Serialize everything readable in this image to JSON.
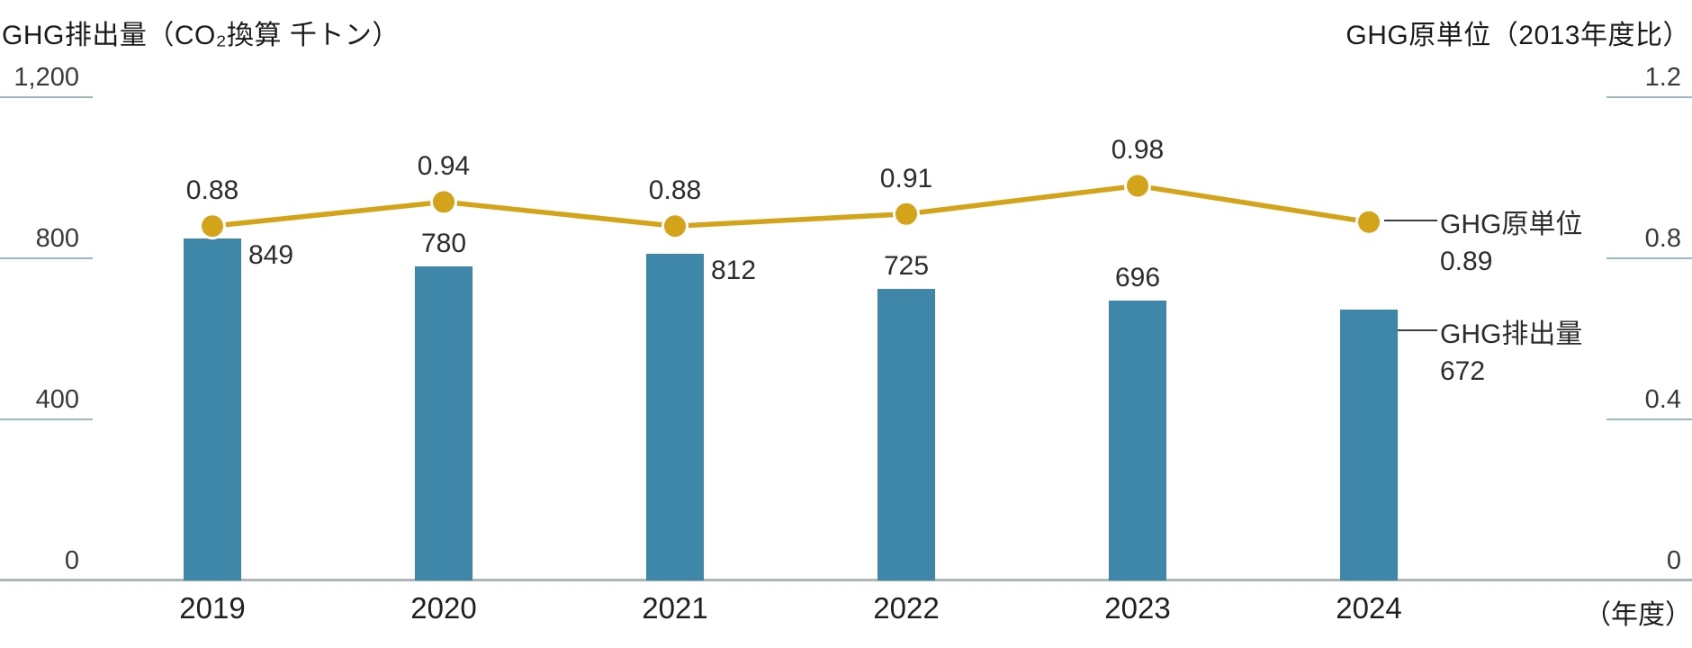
{
  "chart_data": {
    "type": "combo",
    "categories": [
      "2019",
      "2020",
      "2021",
      "2022",
      "2023",
      "2024"
    ],
    "series": [
      {
        "name": "GHG排出量",
        "type": "bar",
        "axis": "left",
        "values": [
          849,
          780,
          812,
          725,
          696,
          672
        ],
        "value_label_positions": [
          "right",
          "above",
          "right",
          "above",
          "above",
          "legend"
        ]
      },
      {
        "name": "GHG原単位",
        "type": "line",
        "axis": "right",
        "values": [
          0.88,
          0.94,
          0.88,
          0.91,
          0.98,
          0.89
        ],
        "value_label_positions": [
          "above",
          "above",
          "above",
          "above",
          "above",
          "legend"
        ]
      }
    ],
    "left_axis": {
      "title": "GHG排出量（CO₂換算 千トン）",
      "ticks": [
        {
          "label": "1,200",
          "value": 1200
        },
        {
          "label": "800",
          "value": 800
        },
        {
          "label": "400",
          "value": 400
        },
        {
          "label": "0",
          "value": 0
        }
      ],
      "range": [
        0,
        1200
      ]
    },
    "right_axis": {
      "title": "GHG原単位（2013年度比）",
      "ticks": [
        {
          "label": "1.2",
          "value": 1.2
        },
        {
          "label": "0.8",
          "value": 0.8
        },
        {
          "label": "0.4",
          "value": 0.4
        },
        {
          "label": "0",
          "value": 0
        }
      ],
      "range": [
        0,
        1.2
      ]
    },
    "x_axis": {
      "unit_label": "（年度）"
    },
    "grid": "tick-stubs-only",
    "legend_position": "right-of-last-points"
  },
  "legend": {
    "line_label": "GHG原単位",
    "line_value": "0.89",
    "bar_label": "GHG排出量",
    "bar_value": "672"
  },
  "colors": {
    "bar": "#3e87a8",
    "line": "#d3a41a",
    "tick_line": "#9db8c5",
    "baseline": "#aeb5b9",
    "leader": "#3d3d3d",
    "text": "#2d2d2d"
  }
}
